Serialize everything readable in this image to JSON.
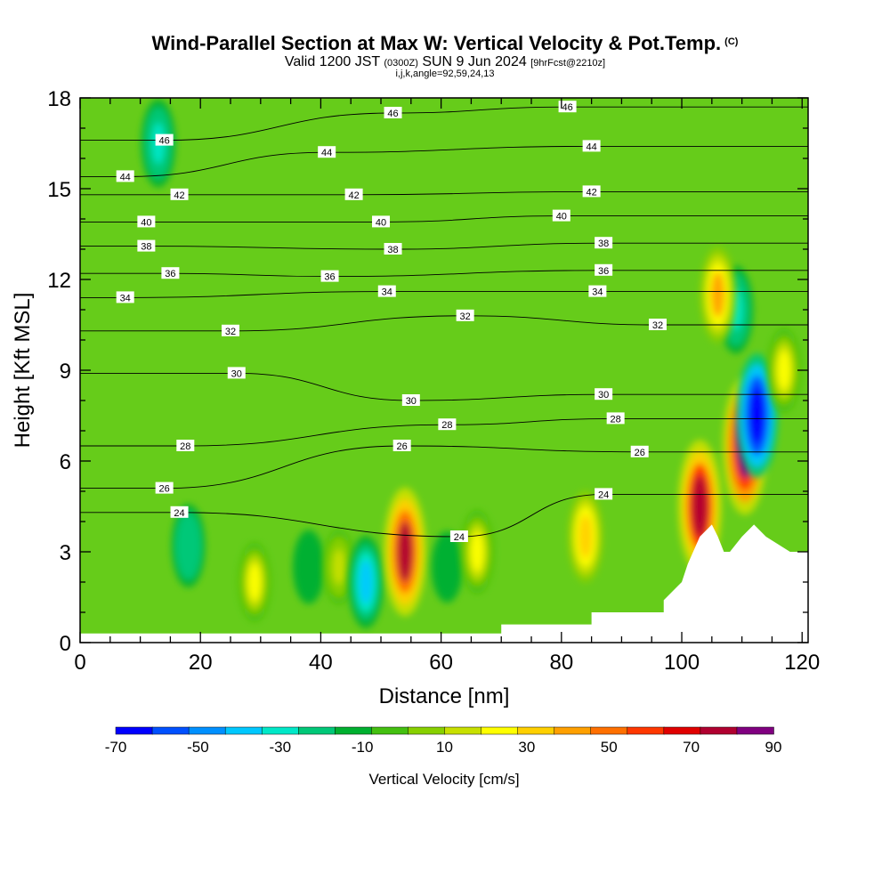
{
  "header": {
    "title": "Wind-Parallel Section at Max W: Vertical Velocity & Pot.Temp.",
    "title_mark": "(C)",
    "valid_prefix": "Valid 1200 JST",
    "valid_utc": "(0300Z)",
    "valid_date": "SUN 9 Jun 2024",
    "forecast": "[9hrFcst@2210z]",
    "indices": "i,j,k,angle=92,59,24,13"
  },
  "chart_data": {
    "type": "heatmap",
    "xlabel": "Distance [nm]",
    "ylabel": "Height [Kft MSL]",
    "xlim": [
      0,
      121
    ],
    "ylim": [
      0,
      18
    ],
    "x_ticks": [
      "0",
      "20",
      "40",
      "60",
      "80",
      "100",
      "120"
    ],
    "y_ticks": [
      "0",
      "3",
      "6",
      "9",
      "12",
      "15",
      "18"
    ],
    "colorbar": {
      "label": "Vertical Velocity [cm/s]",
      "tick_labels": [
        "-70",
        "-50",
        "-30",
        "-10",
        "10",
        "30",
        "50",
        "70",
        "90"
      ],
      "range": [
        -70,
        90
      ],
      "colors": [
        "#0000ff",
        "#0050ff",
        "#0090ff",
        "#00c8ff",
        "#00e8c8",
        "#00c878",
        "#00b030",
        "#44c010",
        "#88d000",
        "#c8e000",
        "#ffff00",
        "#ffd000",
        "#ffa000",
        "#ff7000",
        "#ff3800",
        "#e00000",
        "#b00030",
        "#800080"
      ]
    },
    "velocity_features": [
      {
        "x": 13,
        "y": 16.5,
        "value": -30
      },
      {
        "x": 18,
        "y": 3.2,
        "value": -25
      },
      {
        "x": 29,
        "y": 2,
        "value": 20
      },
      {
        "x": 38,
        "y": 2.5,
        "value": -15
      },
      {
        "x": 43,
        "y": 2.5,
        "value": 15
      },
      {
        "x": 47.5,
        "y": 2,
        "value": -35
      },
      {
        "x": 54,
        "y": 3,
        "value": 75
      },
      {
        "x": 61,
        "y": 2.5,
        "value": -12
      },
      {
        "x": 66,
        "y": 3,
        "value": 25
      },
      {
        "x": 84,
        "y": 3.5,
        "value": 35
      },
      {
        "x": 103,
        "y": 4.5,
        "value": 80
      },
      {
        "x": 110.5,
        "y": 6.5,
        "value": 85
      },
      {
        "x": 112.5,
        "y": 7.5,
        "value": -70
      },
      {
        "x": 109,
        "y": 11,
        "value": -30
      },
      {
        "x": 106,
        "y": 11.5,
        "value": 40
      },
      {
        "x": 117,
        "y": 9,
        "value": 25
      }
    ],
    "terrain": [
      [
        0,
        0.3
      ],
      [
        70,
        0.3
      ],
      [
        70,
        0.6
      ],
      [
        85,
        0.6
      ],
      [
        85,
        1.0
      ],
      [
        97,
        1.0
      ],
      [
        97,
        1.4
      ],
      [
        100,
        2.0
      ],
      [
        101,
        2.6
      ],
      [
        103,
        3.5
      ],
      [
        105,
        3.9
      ],
      [
        106,
        3.5
      ],
      [
        107,
        3.0
      ],
      [
        108,
        3.0
      ],
      [
        110,
        3.5
      ],
      [
        112,
        3.9
      ],
      [
        114,
        3.5
      ],
      [
        118,
        3.0
      ],
      [
        121,
        3.0
      ],
      [
        121,
        0
      ]
    ],
    "isentrope_labels": [
      {
        "text": "46",
        "x": 14,
        "y": 16.6
      },
      {
        "text": "46",
        "x": 52,
        "y": 17.5
      },
      {
        "text": "46",
        "x": 81,
        "y": 17.7
      },
      {
        "text": "44",
        "x": 7.5,
        "y": 15.4
      },
      {
        "text": "44",
        "x": 41,
        "y": 16.2
      },
      {
        "text": "44",
        "x": 85,
        "y": 16.4
      },
      {
        "text": "42",
        "x": 16.5,
        "y": 14.8
      },
      {
        "text": "42",
        "x": 45.5,
        "y": 14.8
      },
      {
        "text": "42",
        "x": 85,
        "y": 14.9
      },
      {
        "text": "40",
        "x": 11,
        "y": 13.9
      },
      {
        "text": "40",
        "x": 50,
        "y": 13.9
      },
      {
        "text": "40",
        "x": 80,
        "y": 14.1
      },
      {
        "text": "38",
        "x": 11,
        "y": 13.1
      },
      {
        "text": "38",
        "x": 52,
        "y": 13.0
      },
      {
        "text": "38",
        "x": 87,
        "y": 13.2
      },
      {
        "text": "36",
        "x": 15,
        "y": 12.2
      },
      {
        "text": "36",
        "x": 41.5,
        "y": 12.1
      },
      {
        "text": "36",
        "x": 87,
        "y": 12.3
      },
      {
        "text": "34",
        "x": 7.5,
        "y": 11.4
      },
      {
        "text": "34",
        "x": 51,
        "y": 11.6
      },
      {
        "text": "34",
        "x": 86,
        "y": 11.6
      },
      {
        "text": "32",
        "x": 25,
        "y": 10.3
      },
      {
        "text": "32",
        "x": 64,
        "y": 10.8
      },
      {
        "text": "32",
        "x": 96,
        "y": 10.5
      },
      {
        "text": "30",
        "x": 26,
        "y": 8.9
      },
      {
        "text": "30",
        "x": 55,
        "y": 8.0
      },
      {
        "text": "30",
        "x": 87,
        "y": 8.2
      },
      {
        "text": "28",
        "x": 17.5,
        "y": 6.5
      },
      {
        "text": "28",
        "x": 61,
        "y": 7.2
      },
      {
        "text": "28",
        "x": 89,
        "y": 7.4
      },
      {
        "text": "26",
        "x": 14,
        "y": 5.1
      },
      {
        "text": "26",
        "x": 53.5,
        "y": 6.5
      },
      {
        "text": "26",
        "x": 93,
        "y": 6.3
      },
      {
        "text": "24",
        "x": 16.5,
        "y": 4.3
      },
      {
        "text": "24",
        "x": 63,
        "y": 3.5
      },
      {
        "text": "24",
        "x": 87,
        "y": 4.9
      }
    ]
  }
}
